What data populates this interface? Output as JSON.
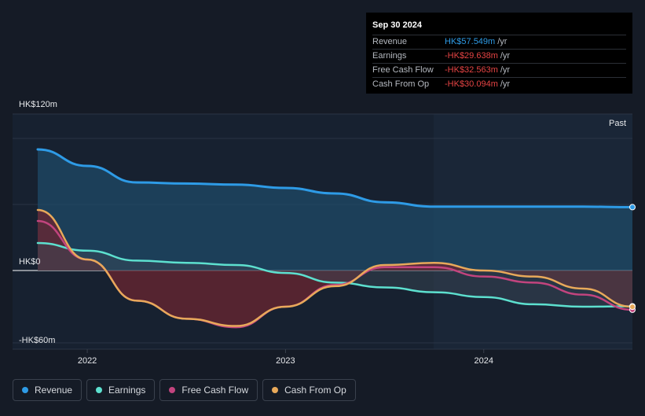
{
  "tooltip": {
    "date": "Sep 30 2024",
    "rows": [
      {
        "label": "Revenue",
        "value": "HK$57.549m",
        "unit": "/yr",
        "color": "#2e9be6"
      },
      {
        "label": "Earnings",
        "value": "-HK$29.638m",
        "unit": "/yr",
        "color": "#e64444"
      },
      {
        "label": "Free Cash Flow",
        "value": "-HK$32.563m",
        "unit": "/yr",
        "color": "#e64444"
      },
      {
        "label": "Cash From Op",
        "value": "-HK$30.094m",
        "unit": "/yr",
        "color": "#e64444"
      }
    ]
  },
  "colors": {
    "revenue": "#2e9be6",
    "earnings": "#5de0cf",
    "fcf": "#c2447e",
    "cfo": "#e8a95a",
    "background": "#151b26",
    "positive_fill": "#1f4d6b",
    "negative_fill": "#6b2530"
  },
  "chart_data": {
    "type": "area",
    "y_tick_labels": [
      "HK$120m",
      "HK$0",
      "-HK$60m"
    ],
    "x_tick_labels": [
      "2022",
      "2023",
      "2024"
    ],
    "ylim": [
      -60,
      120
    ],
    "past_label": "Past",
    "legend_position": "bottom-left",
    "grid": true,
    "x": [
      2021.75,
      2022.0,
      2022.25,
      2022.5,
      2022.75,
      2023.0,
      2023.25,
      2023.5,
      2023.75,
      2024.0,
      2024.25,
      2024.5,
      2024.75
    ],
    "series": [
      {
        "name": "Revenue",
        "key": "revenue",
        "values": [
          110,
          95,
          80,
          79,
          78,
          75,
          70,
          62,
          58,
          58,
          58,
          58,
          57.549
        ]
      },
      {
        "name": "Earnings",
        "key": "earnings",
        "values": [
          25,
          18,
          9,
          7,
          5,
          -2,
          -10,
          -14,
          -18,
          -22,
          -28,
          -30,
          -29.638
        ]
      },
      {
        "name": "Free Cash Flow",
        "key": "fcf",
        "values": [
          45,
          10,
          -25,
          -40,
          -47,
          -30,
          -12,
          3,
          3,
          -5,
          -10,
          -20,
          -32.563
        ]
      },
      {
        "name": "Cash From Op",
        "key": "cfo",
        "values": [
          55,
          10,
          -25,
          -40,
          -46,
          -30,
          -13,
          5,
          7,
          0,
          -5,
          -15,
          -30.094
        ]
      }
    ]
  },
  "legend": [
    {
      "label": "Revenue",
      "key": "revenue"
    },
    {
      "label": "Earnings",
      "key": "earnings"
    },
    {
      "label": "Free Cash Flow",
      "key": "fcf"
    },
    {
      "label": "Cash From Op",
      "key": "cfo"
    }
  ]
}
